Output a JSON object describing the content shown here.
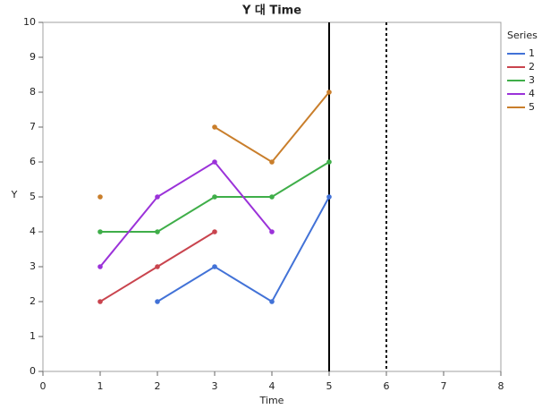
{
  "chart_data": {
    "type": "line",
    "title": "Y 대 Time",
    "x_label": "Time",
    "y_label": "Y",
    "legend_title": "Series",
    "legend_position": "right",
    "x": [
      1,
      2,
      3,
      4,
      5
    ],
    "series": [
      {
        "name": "1",
        "color": "#4272d7",
        "values": [
          null,
          2,
          3,
          2,
          5
        ]
      },
      {
        "name": "2",
        "color": "#c9444e",
        "values": [
          2,
          3,
          4,
          null,
          null
        ]
      },
      {
        "name": "3",
        "color": "#3fae49",
        "values": [
          4,
          4,
          5,
          5,
          6
        ]
      },
      {
        "name": "4",
        "color": "#9b32d9",
        "values": [
          3,
          5,
          6,
          4,
          null
        ]
      },
      {
        "name": "5",
        "color": "#c97e2b",
        "values": [
          5,
          null,
          7,
          6,
          8
        ]
      }
    ],
    "reference_lines": [
      {
        "value": 5,
        "style": "solid"
      },
      {
        "value": 6,
        "style": "dotted"
      }
    ],
    "xlim": [
      0,
      8
    ],
    "xticks": [
      0,
      1,
      2,
      3,
      4,
      5,
      6,
      7,
      8
    ],
    "ylim": [
      0,
      10
    ],
    "yticks": [
      0,
      1,
      2,
      3,
      4,
      5,
      6,
      7,
      8,
      9,
      10
    ],
    "grid": false
  }
}
